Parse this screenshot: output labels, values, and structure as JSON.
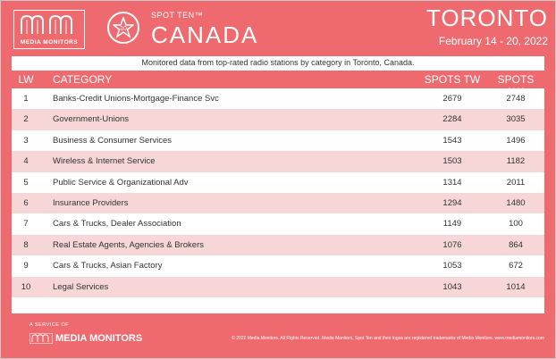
{
  "brand": {
    "logo_text": "MEDIA MONITORS",
    "badge_number": "10",
    "product": "SPOT TEN™",
    "country": "CANADA",
    "city": "TORONTO",
    "dates": "February 14 - 20, 2022",
    "accent_color": "#ee6a6e",
    "stripe_color": "#f6d6d7"
  },
  "subtitle": "Monitored data from top-rated radio stations by category in Toronto, Canada.",
  "table": {
    "headers": {
      "lw": "LW",
      "category": "CATEGORY",
      "spots_tw": "SPOTS TW",
      "spots_lw": "SPOTS LW"
    },
    "rows": [
      {
        "lw": "1",
        "category": "Banks-Credit Unions-Mortgage-Finance Svc",
        "tw": "2679",
        "lwv": "2748"
      },
      {
        "lw": "2",
        "category": "Government-Unions",
        "tw": "2284",
        "lwv": "3035"
      },
      {
        "lw": "3",
        "category": "Business & Consumer Services",
        "tw": "1543",
        "lwv": "1496"
      },
      {
        "lw": "4",
        "category": "Wireless & Internet Service",
        "tw": "1503",
        "lwv": "1182"
      },
      {
        "lw": "5",
        "category": "Public Service & Organizational Adv",
        "tw": "1314",
        "lwv": "2011"
      },
      {
        "lw": "6",
        "category": "Insurance Providers",
        "tw": "1294",
        "lwv": "1480"
      },
      {
        "lw": "7",
        "category": "Cars & Trucks, Dealer Association",
        "tw": "1149",
        "lwv": "100"
      },
      {
        "lw": "8",
        "category": "Real Estate Agents, Agencies & Brokers",
        "tw": "1076",
        "lwv": "864"
      },
      {
        "lw": "9",
        "category": "Cars & Trucks, Asian Factory",
        "tw": "1053",
        "lwv": "672"
      },
      {
        "lw": "10",
        "category": "Legal Services",
        "tw": "1043",
        "lwv": "1014"
      }
    ]
  },
  "footer": {
    "service": "A SERVICE OF",
    "brand": "MEDIA MONITORS",
    "copyright": "© 2022 Media Monitors. All Rights Reserved. Media Monitors, Spot Ten and their logos are registered trademarks of Media Monitors. www.mediamonitors.com"
  }
}
